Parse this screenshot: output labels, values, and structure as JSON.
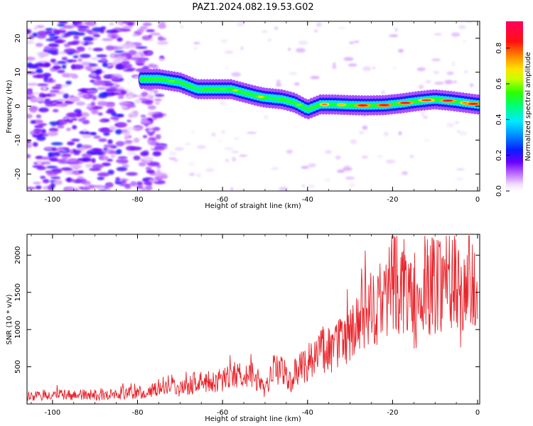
{
  "figure": {
    "title": "PAZ1.2024.082.19.53.G02"
  },
  "chart_data": [
    {
      "type": "heatmap",
      "xlabel": "Height of straight line (km)",
      "ylabel": "Frequency (Hz)",
      "xlim": [
        -106,
        0.5
      ],
      "ylim": [
        -25,
        25
      ],
      "xticks": [
        -100,
        -80,
        -60,
        -40,
        -20,
        0
      ],
      "yticks": [
        -20,
        -10,
        0,
        10,
        20
      ],
      "colorbar": {
        "label": "Normalized spectral amplitude",
        "range": [
          0,
          0.95
        ],
        "ticks": [
          0.0,
          0.2,
          0.4,
          0.6,
          0.8
        ],
        "colormap": "gist_rainbow_r (white at 0, violet, blue, cyan, green, yellow, red, magenta at max)"
      },
      "ridge": {
        "description": "Dominant Doppler frequency track (normalized amplitude peaks near 0.9)",
        "x": [
          -79,
          -75,
          -70,
          -66,
          -62,
          -58,
          -55,
          -52,
          -50,
          -46,
          -43,
          -40,
          -37,
          -34,
          -30,
          -26,
          -22,
          -18,
          -14,
          -10,
          -6,
          -3,
          0
        ],
        "y": [
          8,
          8,
          7,
          5,
          5,
          5,
          4,
          3,
          2.5,
          2,
          1,
          -1,
          0.5,
          0.5,
          0.3,
          0.2,
          0.3,
          0.8,
          1.5,
          2,
          1.5,
          1,
          0.5
        ]
      },
      "noise_region": "Broad weak violet noise (amplitude ~0.1-0.3) spanning x -106 to -78 km across all frequencies"
    },
    {
      "type": "line",
      "xlabel": "Height of straight line (km)",
      "ylabel": "SNR (10 * v/v)",
      "xlim": [
        -106,
        0.5
      ],
      "ylim": [
        0,
        2280
      ],
      "xticks": [
        -100,
        -80,
        -60,
        -40,
        -20,
        0
      ],
      "yticks": [
        500,
        1000,
        1500,
        2000
      ],
      "series": [
        {
          "color": "#e8232a",
          "x": [
            -106,
            -100,
            -95,
            -90,
            -85,
            -80,
            -76,
            -74,
            -72,
            -70,
            -68,
            -66,
            -64,
            -62,
            -60,
            -58,
            -56,
            -54,
            -52,
            -50,
            -48,
            -46,
            -44,
            -42,
            -40,
            -38,
            -36,
            -34,
            -32,
            -30,
            -28,
            -26,
            -24,
            -22,
            -20,
            -18,
            -16,
            -14,
            -12,
            -10,
            -8,
            -6,
            -4,
            -2,
            0
          ],
          "values": [
            100,
            120,
            120,
            120,
            130,
            150,
            180,
            260,
            280,
            200,
            230,
            330,
            270,
            300,
            320,
            420,
            380,
            430,
            330,
            160,
            450,
            480,
            300,
            500,
            550,
            650,
            750,
            700,
            850,
            900,
            1050,
            1200,
            1300,
            1350,
            1750,
            1600,
            1450,
            1150,
            1550,
            1650,
            1700,
            1800,
            1350,
            1700,
            1250
          ]
        }
      ]
    }
  ]
}
